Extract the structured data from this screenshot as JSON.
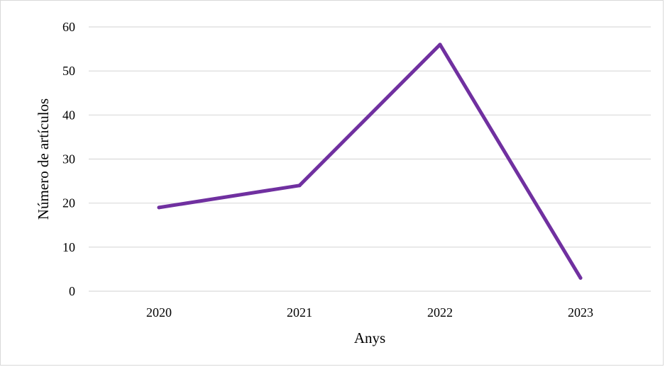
{
  "chart_data": {
    "type": "line",
    "title": "",
    "xlabel": "Anys",
    "ylabel": "Número de artículos",
    "categories": [
      "2020",
      "2021",
      "2022",
      "2023"
    ],
    "series": [
      {
        "values": [
          19,
          24,
          56,
          3
        ],
        "color": "#7030a0"
      }
    ],
    "ylim": [
      0,
      60
    ],
    "yticks": [
      0,
      10,
      20,
      30,
      40,
      50,
      60
    ],
    "grid": true,
    "grid_color": "#d9d9d9",
    "legend": "none"
  }
}
